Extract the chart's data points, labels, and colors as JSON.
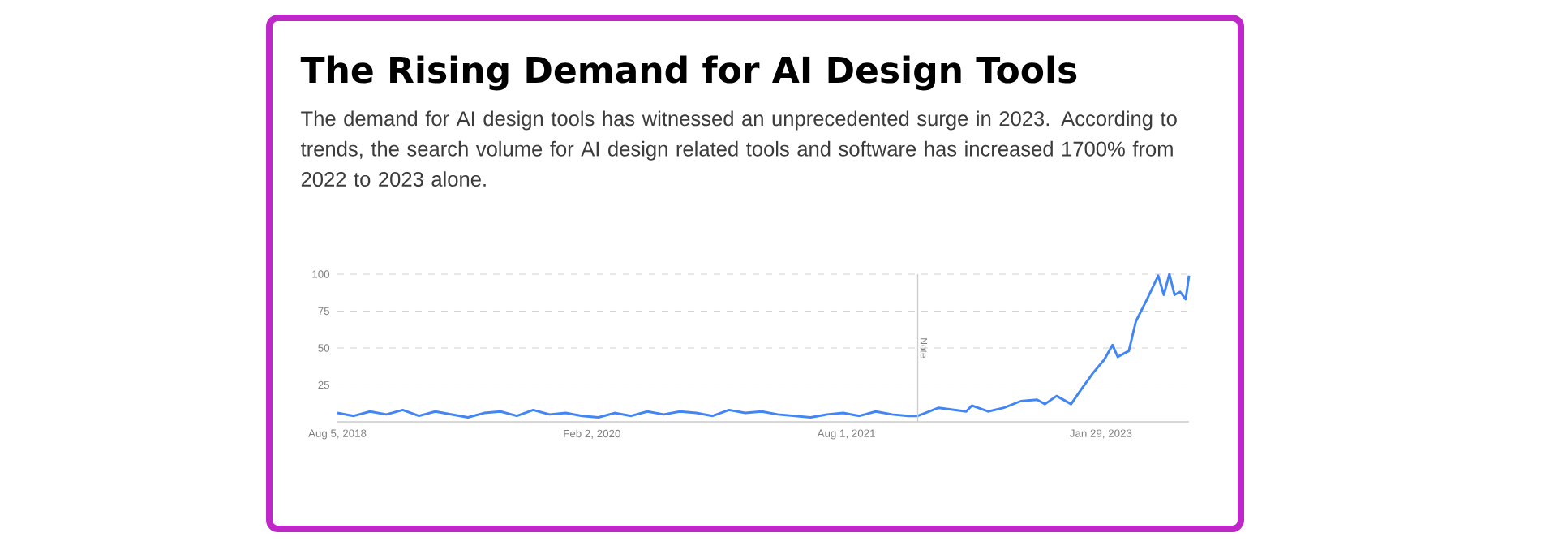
{
  "chart_data": {
    "type": "line",
    "title": "The Rising Demand for AI Design Tools",
    "subtitle": "The demand for AI design tools has witnessed an unprecedented surge in 2023. According to trends, the search volume for AI design related tools and software has increased 1700% from 2022 to 2023 alone.",
    "xlim": [
      "2018-08-05",
      "2023-08-06"
    ],
    "xticks": [
      {
        "value": "2018-08-05",
        "label": "Aug 5, 2018"
      },
      {
        "value": "2020-02-02",
        "label": "Feb 2, 2020"
      },
      {
        "value": "2021-08-01",
        "label": "Aug 1, 2021"
      },
      {
        "value": "2023-01-29",
        "label": "Jan 29, 2023"
      }
    ],
    "ylim": [
      0,
      100
    ],
    "yticks": [
      25,
      50,
      75,
      100
    ],
    "grid": "y",
    "ref_lines": [
      {
        "axis": "x",
        "value": "2022-01-01",
        "label": "Note",
        "color": "#cccccc"
      }
    ],
    "series": [
      {
        "color": "#4285f4",
        "x": [
          "2018-08-05",
          "2018-09-09",
          "2018-10-14",
          "2018-11-18",
          "2018-12-23",
          "2019-01-27",
          "2019-03-03",
          "2019-04-07",
          "2019-05-12",
          "2019-06-16",
          "2019-07-21",
          "2019-08-25",
          "2019-09-29",
          "2019-11-03",
          "2019-12-08",
          "2020-01-12",
          "2020-02-16",
          "2020-03-22",
          "2020-04-26",
          "2020-05-31",
          "2020-07-05",
          "2020-08-09",
          "2020-09-13",
          "2020-10-18",
          "2020-11-22",
          "2020-12-27",
          "2021-01-31",
          "2021-03-07",
          "2021-04-11",
          "2021-05-16",
          "2021-06-20",
          "2021-07-25",
          "2021-08-29",
          "2021-10-03",
          "2021-11-07",
          "2021-12-12",
          "2022-01-01",
          "2022-02-15",
          "2022-04-15",
          "2022-04-27",
          "2022-06-01",
          "2022-07-05",
          "2022-08-10",
          "2022-09-14",
          "2022-10-01",
          "2022-10-26",
          "2022-11-26",
          "2022-12-18",
          "2023-01-12",
          "2023-02-05",
          "2023-02-23",
          "2023-03-06",
          "2023-03-30",
          "2023-04-14",
          "2023-05-08",
          "2023-06-01",
          "2023-06-13",
          "2023-06-25",
          "2023-07-06",
          "2023-07-18",
          "2023-07-30",
          "2023-08-06"
        ],
        "values": [
          6,
          4,
          7,
          5,
          8,
          4,
          7,
          5,
          3,
          6,
          7,
          4,
          8,
          5,
          6,
          4,
          3,
          6,
          4,
          7,
          5,
          7,
          6,
          4,
          8,
          6,
          7,
          5,
          4,
          3,
          5,
          6,
          4,
          7,
          5,
          4,
          4,
          9.5,
          7,
          11,
          7,
          9.5,
          14,
          15,
          12,
          17.5,
          12,
          22,
          33,
          42,
          52,
          44,
          48,
          68,
          83,
          99,
          86,
          100,
          86,
          88,
          83,
          99
        ]
      }
    ]
  }
}
